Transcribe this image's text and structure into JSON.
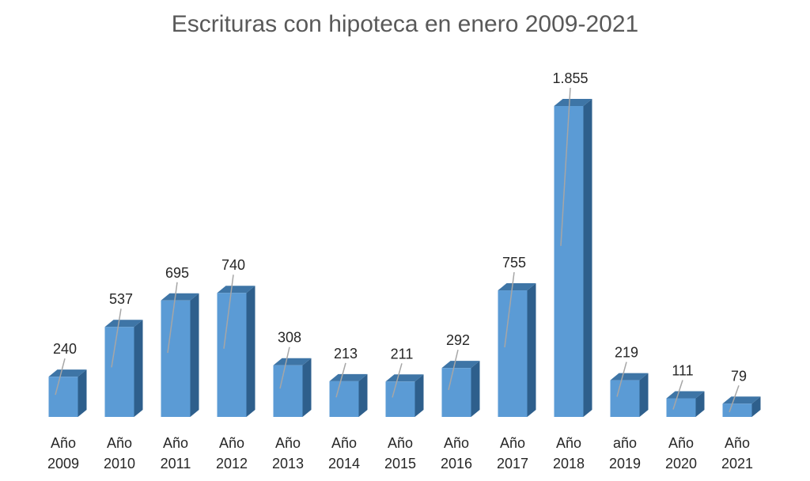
{
  "chart_data": {
    "type": "bar",
    "title": "Escrituras con hipoteca en enero 2009-2021",
    "xlabel": "",
    "ylabel": "",
    "categories": [
      [
        "Año",
        "2009"
      ],
      [
        "Año",
        "2010"
      ],
      [
        "Año",
        "2011"
      ],
      [
        "Año",
        "2012"
      ],
      [
        "Año",
        "2013"
      ],
      [
        "Año",
        "2014"
      ],
      [
        "Año",
        "2015"
      ],
      [
        "Año",
        "2016"
      ],
      [
        "Año",
        "2017"
      ],
      [
        "Año",
        "2018"
      ],
      [
        "año",
        "2019"
      ],
      [
        "Año",
        "2020"
      ],
      [
        "Año",
        "2021"
      ]
    ],
    "values": [
      240,
      537,
      695,
      740,
      308,
      213,
      211,
      292,
      755,
      1855,
      219,
      111,
      79
    ],
    "value_labels": [
      "240",
      "537",
      "695",
      "740",
      "308",
      "213",
      "211",
      "292",
      "755",
      "1.855",
      "219",
      "111",
      "79"
    ],
    "ylim": [
      0,
      1855
    ],
    "grid": false,
    "legend": "none",
    "bar_style": "3d",
    "colors": {
      "front": "#5b9bd5",
      "top": "#3e75a6",
      "side": "#2e5f8c",
      "leader": "#a6a6a6"
    }
  }
}
